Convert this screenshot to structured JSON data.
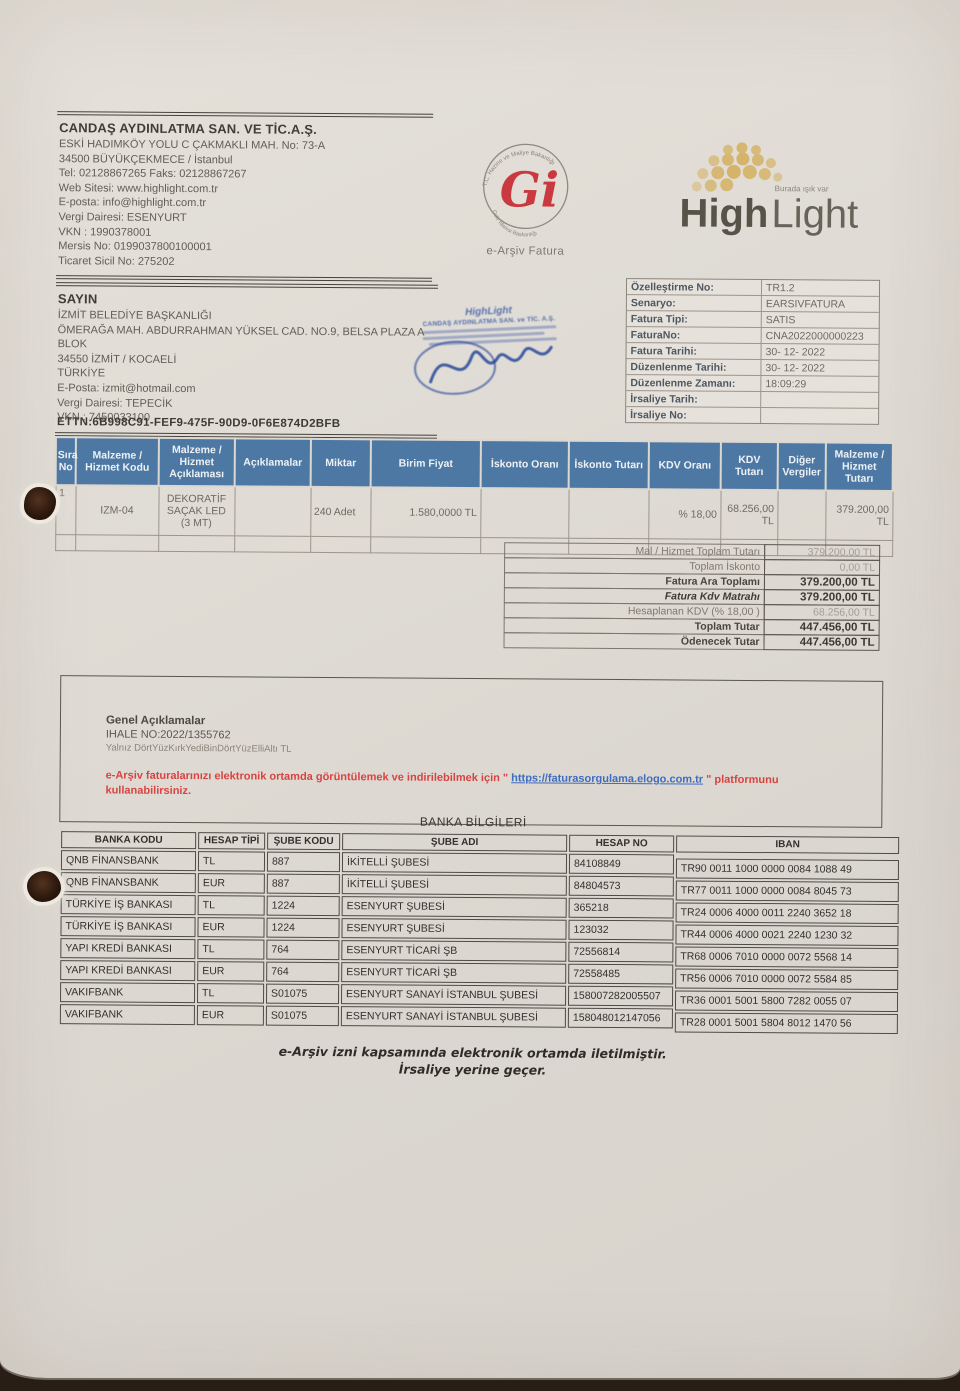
{
  "seller": {
    "name": "CANDAŞ AYDINLATMA SAN. VE TİC.A.Ş.",
    "lines": [
      "ESKİ HADIMKÖY YOLU C ÇAKMAKLI MAH.  No: 73-A",
      "34500  BÜYÜKÇEKMECE / İstanbul",
      "Tel:  02128867265 Faks: 02128867267",
      "Web Sitesi:  www.highlight.com.tr",
      "E-posta: info@highlight.com.tr",
      "Vergi Dairesi: ESENYURT",
      "VKN : 1990378001",
      "Mersis No: 0199037800100001",
      "Ticaret Sicil No: 275202"
    ]
  },
  "gib_stamp": {
    "circle_text_top": "T.C. Hazine ve Maliye Bakanlığı",
    "circle_text_bottom": "Gelir İdaresi Başkanlığı",
    "monogram": "Gi",
    "label": "e-Arşiv Fatura",
    "monogram_color": "#c9393f"
  },
  "brand": {
    "name_bold": "High",
    "name_light": "Light",
    "tagline": "Burada ışık var",
    "dome_color": "#d5b469"
  },
  "buyer": {
    "heading": "SAYIN",
    "lines": [
      "İZMİT BELEDİYE BAŞKANLIĞI",
      "ÖMERAĞA MAH. ABDURRAHMAN YÜKSEL CAD. NO.9, BELSA PLAZA A BLOK",
      "34550  İZMİT / KOCAELİ",
      "TÜRKİYE",
      "E-Posta: izmit@hotmail.com",
      "Vergi Dairesi: TEPECİK",
      "VKN : 7450033100"
    ]
  },
  "stamp": {
    "brand": "HighLight",
    "company": "CANDAŞ AYDINLATMA SAN. ve TİC. A.Ş."
  },
  "invoice_meta": {
    "rows": [
      {
        "label": "Özelleştirme No:",
        "value": "TR1.2"
      },
      {
        "label": "Senaryo:",
        "value": "EARSIVFATURA"
      },
      {
        "label": "Fatura Tipi:",
        "value": "SATIS"
      },
      {
        "label": "FaturaNo:",
        "value": "CNA2022000000223"
      },
      {
        "label": "Fatura Tarihi:",
        "value": "30- 12- 2022"
      },
      {
        "label": "Düzenlenme Tarihi:",
        "value": "30- 12- 2022"
      },
      {
        "label": "Düzenlenme Zamanı:",
        "value": "18:09:29"
      },
      {
        "label": "İrsaliye Tarih:",
        "value": ""
      },
      {
        "label": "İrsaliye No:",
        "value": ""
      }
    ]
  },
  "ettn": "ETTN:6B998C91-FEF9-475F-90D9-0F6E874D2BFB",
  "items_table": {
    "header_bg": "#4d78a3",
    "headers": [
      "Sıra No",
      "Malzeme / Hizmet Kodu",
      "Malzeme / Hizmet Açıklaması",
      "Açıklamalar",
      "Miktar",
      "Birim Fiyat",
      "İskonto Oranı",
      "İskonto Tutarı",
      "KDV Oranı",
      "KDV Tutarı",
      "Diğer Vergiler",
      "Malzeme / Hizmet Tutarı"
    ],
    "rows": [
      [
        "1",
        "IZM-04",
        "DEKORATİF SAÇAK LED (3 MT)",
        "",
        "240 Adet",
        "1.580,0000 TL",
        "",
        "",
        "% 18,00",
        "68.256,00 TL",
        "",
        "379.200,00 TL"
      ]
    ]
  },
  "totals": {
    "rows": [
      {
        "label": "Mal / Hizmet Toplam Tutarı",
        "value": "379.200,00 TL",
        "style": "light"
      },
      {
        "label": "Toplam İskonto",
        "value": "0,00 TL",
        "style": "light"
      },
      {
        "label": "Fatura Ara Toplamı",
        "value": "379.200,00 TL",
        "style": "bold"
      },
      {
        "label": "Fatura Kdv Matrahı",
        "value": "379.200,00 TL",
        "style": "bold-italic"
      },
      {
        "label": "Hesaplanan KDV (% 18,00 )",
        "value": "68.256,00 TL",
        "style": "light"
      },
      {
        "label": "Toplam Tutar",
        "value": "447.456,00 TL",
        "style": "bold"
      },
      {
        "label": "Ödenecek Tutar",
        "value": "447.456,00 TL",
        "style": "bold"
      }
    ]
  },
  "notes": {
    "heading": "Genel Açıklamalar",
    "line1": "IHALE NO:2022/1355762",
    "line2": "Yalnız DörtYüzKırkYediBinDörtYüzElliAltı TL",
    "red_before": "e-Arşiv faturalarınızı elektronik ortamda görüntülemek ve indirilebilmek için \" ",
    "link": "https://faturasorgulama.elogo.com.tr",
    "red_after": " \" platformunu kullanabilirsiniz."
  },
  "bank_section": {
    "title": "BANKA BİLGİLERİ",
    "headers": [
      "BANKA KODU",
      "HESAP TİPİ",
      "ŞUBE KODU",
      "ŞUBE ADI",
      "HESAP NO",
      "IBAN"
    ],
    "rows": [
      [
        "QNB FİNANSBANK",
        "TL",
        "887",
        "İKİTELLİ ŞUBESİ",
        "84108849",
        "TR90 0011 1000 0000 0084 1088 49"
      ],
      [
        "QNB FİNANSBANK",
        "EUR",
        "887",
        "İKİTELLİ ŞUBESİ",
        "84804573",
        "TR77 0011 1000 0000 0084 8045 73"
      ],
      [
        "TÜRKİYE İŞ BANKASI",
        "TL",
        "1224",
        "ESENYURT ŞUBESİ",
        "365218",
        "TR24 0006 4000 0011 2240 3652 18"
      ],
      [
        "TÜRKİYE İŞ BANKASI",
        "EUR",
        "1224",
        "ESENYURT ŞUBESİ",
        "123032",
        "TR44 0006 4000 0021 2240 1230 32"
      ],
      [
        "YAPI KREDİ BANKASI",
        "TL",
        "764",
        "ESENYURT TİCARİ ŞB",
        "72556814",
        "TR68 0006 7010 0000 0072 5568 14"
      ],
      [
        "YAPI KREDİ BANKASI",
        "EUR",
        "764",
        "ESENYURT TİCARİ ŞB",
        "72558485",
        "TR56 0006 7010 0000 0072 5584 85"
      ],
      [
        "VAKIFBANK",
        "TL",
        "S01075",
        "ESENYURT SANAYİ İSTANBUL ŞUBESİ",
        "158007282005507",
        "TR36 0001 5001 5800 7282 0055 07"
      ],
      [
        "VAKIFBANK",
        "EUR",
        "S01075",
        "ESENYURT SANAYİ İSTANBUL ŞUBESİ",
        "158048012147056",
        "TR28 0001 5001 5804 8012 1470 56"
      ]
    ]
  },
  "footer": {
    "line1": "e-Arşiv izni kapsamında elektronik ortamda iletilmiştir.",
    "line2": "İrsaliye yerine geçer."
  }
}
